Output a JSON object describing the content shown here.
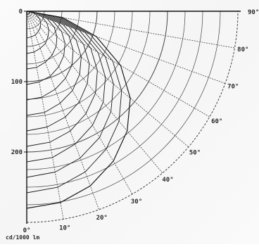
{
  "chart_data": {
    "type": "polar_intensity_curve",
    "title": "",
    "unit_label": "cd/1000 lm",
    "radial_ticks": [
      {
        "value": 0,
        "label": "0"
      },
      {
        "value": 100,
        "label": "100"
      },
      {
        "value": 200,
        "label": "200"
      }
    ],
    "angle_ticks": [
      {
        "angle": 0,
        "label": "0°"
      },
      {
        "angle": 10,
        "label": "10°"
      },
      {
        "angle": 20,
        "label": "20°"
      },
      {
        "angle": 30,
        "label": "30°"
      },
      {
        "angle": 40,
        "label": "40°"
      },
      {
        "angle": 50,
        "label": "50°"
      },
      {
        "angle": 60,
        "label": "60°"
      },
      {
        "angle": 70,
        "label": "70°"
      },
      {
        "angle": 80,
        "label": "80°"
      },
      {
        "angle": 90,
        "label": "90°"
      }
    ],
    "radial_range": [
      0,
      300
    ],
    "angle_range": [
      0,
      90
    ],
    "curves": [
      {
        "r": [
          280,
          276,
          264,
          246,
          222,
          192,
          154,
          105,
          52,
          0
        ]
      },
      {
        "r": [
          258,
          254,
          243,
          226,
          204,
          176,
          141,
          96,
          48,
          0
        ]
      },
      {
        "r": [
          236,
          232,
          222,
          207,
          186,
          161,
          129,
          88,
          44,
          0
        ]
      },
      {
        "r": [
          214,
          211,
          201,
          187,
          169,
          146,
          117,
          80,
          40,
          0
        ]
      },
      {
        "r": [
          192,
          189,
          181,
          168,
          152,
          131,
          105,
          72,
          36,
          0
        ]
      },
      {
        "r": [
          170,
          167,
          160,
          149,
          134,
          116,
          93,
          64,
          32,
          0
        ]
      },
      {
        "r": [
          148,
          146,
          139,
          130,
          117,
          101,
          81,
          55,
          28,
          0
        ]
      },
      {
        "r": [
          126,
          124,
          118,
          110,
          100,
          86,
          69,
          47,
          24,
          0
        ]
      },
      {
        "r": [
          104,
          102,
          98,
          91,
          82,
          71,
          57,
          39,
          20,
          0
        ]
      },
      {
        "r": [
          82,
          81,
          77,
          72,
          65,
          56,
          45,
          31,
          16,
          0
        ]
      },
      {
        "r": [
          60,
          59,
          56,
          53,
          47,
          41,
          33,
          23,
          12,
          0
        ]
      },
      {
        "r": [
          38,
          37,
          36,
          33,
          30,
          26,
          21,
          14,
          8,
          0
        ]
      }
    ]
  }
}
